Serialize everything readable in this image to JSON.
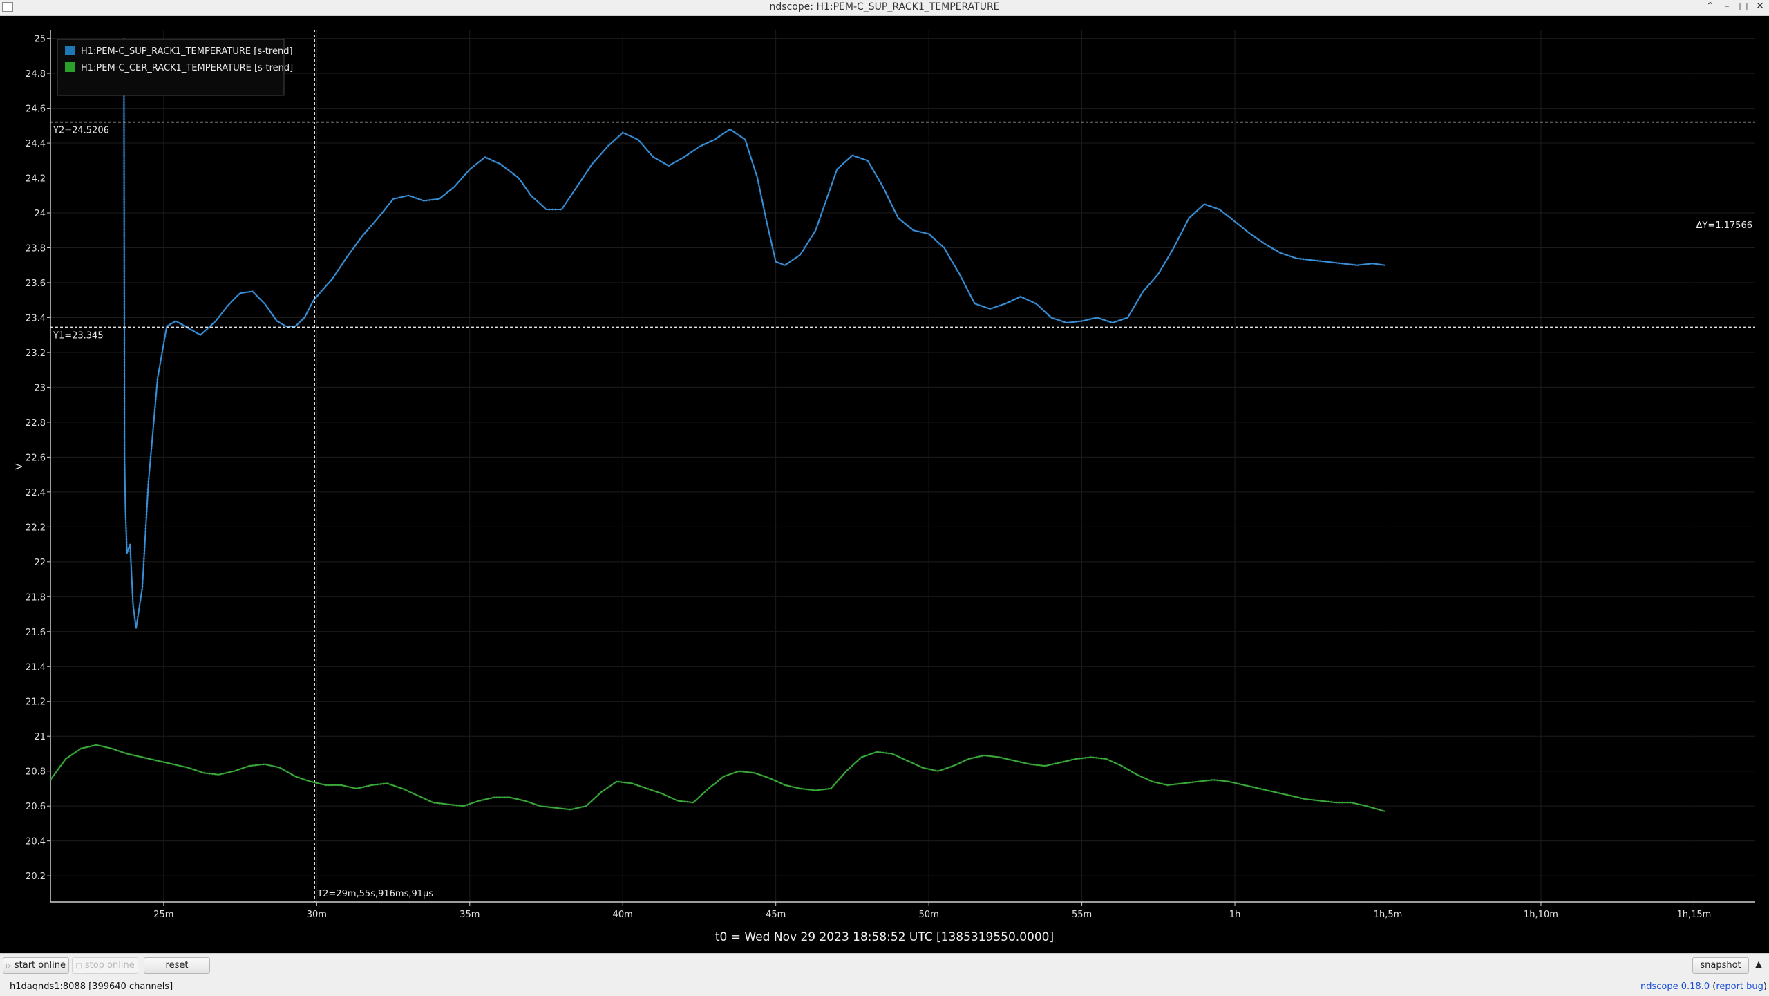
{
  "window": {
    "title": "ndscope: H1:PEM-C_SUP_RACK1_TEMPERATURE",
    "controls": [
      "chevron-up-icon",
      "minimize-icon",
      "maximize-icon",
      "close-icon"
    ]
  },
  "plot": {
    "legend": [
      {
        "label": "H1:PEM-C_SUP_RACK1_TEMPERATURE [s-trend]",
        "color": "#1f77b4"
      },
      {
        "label": "H1:PEM-C_CER_RACK1_TEMPERATURE [s-trend]",
        "color": "#2ca02c"
      }
    ],
    "y_axis_label": "V",
    "t0_label": "t0 = Wed Nov 29 2023 18:58:52 UTC [1385319550.0000]",
    "cursors": {
      "y1_label": "Y1=23.345",
      "y2_label": "Y2=24.5206",
      "dy_label": "ΔY=1.17566",
      "t2_label": "T2=29m,55s,916ms,91μs"
    },
    "colors": {
      "background": "#000000",
      "grid": "#2a2a2a",
      "axis": "#cccccc",
      "cursor": "#dddddd"
    }
  },
  "chart_data": {
    "type": "line",
    "xlabel": "",
    "ylabel": "V",
    "xlim": [
      21.3,
      77.0
    ],
    "ylim": [
      20.05,
      25.05
    ],
    "x_unit": "minutes since t0",
    "x_ticks": [
      {
        "value": 25,
        "label": "25m"
      },
      {
        "value": 30,
        "label": "30m"
      },
      {
        "value": 35,
        "label": "35m"
      },
      {
        "value": 40,
        "label": "40m"
      },
      {
        "value": 45,
        "label": "45m"
      },
      {
        "value": 50,
        "label": "50m"
      },
      {
        "value": 55,
        "label": "55m"
      },
      {
        "value": 60,
        "label": "1h"
      },
      {
        "value": 65,
        "label": "1h,5m"
      },
      {
        "value": 70,
        "label": "1h,10m"
      },
      {
        "value": 75,
        "label": "1h,15m"
      }
    ],
    "y_ticks": [
      "20.2",
      "20.4",
      "20.6",
      "20.8",
      "21",
      "21.2",
      "21.4",
      "21.6",
      "21.8",
      "22",
      "22.2",
      "22.4",
      "22.6",
      "22.8",
      "23",
      "23.2",
      "23.4",
      "23.6",
      "23.8",
      "24",
      "24.2",
      "24.4",
      "24.6",
      "24.8",
      "25"
    ],
    "cursors": {
      "y1": 23.345,
      "y2": 24.5206,
      "t2": 29.93
    },
    "series": [
      {
        "name": "H1:PEM-C_SUP_RACK1_TEMPERATURE [s-trend]",
        "color": "#3a8fd6",
        "x": [
          23.7,
          23.72,
          23.75,
          23.8,
          23.9,
          24.0,
          24.1,
          24.3,
          24.5,
          24.8,
          25.1,
          25.4,
          25.7,
          26.2,
          26.7,
          27.1,
          27.5,
          27.9,
          28.3,
          28.7,
          29.0,
          29.3,
          29.6,
          29.9,
          30.5,
          31.0,
          31.5,
          32.0,
          32.5,
          33.0,
          33.5,
          34.0,
          34.5,
          35.0,
          35.5,
          36.0,
          36.6,
          37.0,
          37.5,
          38.0,
          38.5,
          39.0,
          39.5,
          40.0,
          40.5,
          41.0,
          41.5,
          42.0,
          42.5,
          43.0,
          43.5,
          44.0,
          44.4,
          44.7,
          45.0,
          45.3,
          45.8,
          46.3,
          46.7,
          47.0,
          47.5,
          48.0,
          48.5,
          49.0,
          49.5,
          50.0,
          50.5,
          51.0,
          51.5,
          52.0,
          52.5,
          53.0,
          53.5,
          54.0,
          54.5,
          55.0,
          55.5,
          56.0,
          56.5,
          57.0,
          57.5,
          58.0,
          58.5,
          59.0,
          59.5,
          60.0,
          60.5,
          61.0,
          61.5,
          62.0,
          62.5,
          63.0,
          63.5,
          64.0,
          64.5,
          64.9
        ],
        "y": [
          25.0,
          22.6,
          22.3,
          22.05,
          22.1,
          21.75,
          21.62,
          21.85,
          22.45,
          23.05,
          23.35,
          23.38,
          23.35,
          23.3,
          23.38,
          23.47,
          23.54,
          23.55,
          23.48,
          23.38,
          23.35,
          23.35,
          23.4,
          23.5,
          23.62,
          23.75,
          23.87,
          23.97,
          24.08,
          24.1,
          24.07,
          24.08,
          24.15,
          24.25,
          24.32,
          24.28,
          24.2,
          24.1,
          24.02,
          24.02,
          24.15,
          24.28,
          24.38,
          24.46,
          24.42,
          24.32,
          24.27,
          24.32,
          24.38,
          24.42,
          24.48,
          24.42,
          24.2,
          23.95,
          23.72,
          23.7,
          23.76,
          23.9,
          24.1,
          24.25,
          24.33,
          24.3,
          24.15,
          23.97,
          23.9,
          23.88,
          23.8,
          23.65,
          23.48,
          23.45,
          23.48,
          23.52,
          23.48,
          23.4,
          23.37,
          23.38,
          23.4,
          23.37,
          23.4,
          23.55,
          23.65,
          23.8,
          23.97,
          24.05,
          24.02,
          23.95,
          23.88,
          23.82,
          23.77,
          23.74,
          23.73,
          23.72,
          23.71,
          23.7,
          23.71,
          23.7
        ]
      },
      {
        "name": "H1:PEM-C_CER_RACK1_TEMPERATURE [s-trend]",
        "color": "#3aa83a",
        "x": [
          21.3,
          21.8,
          22.3,
          22.8,
          23.3,
          23.8,
          24.3,
          24.8,
          25.3,
          25.8,
          26.3,
          26.8,
          27.3,
          27.8,
          28.3,
          28.8,
          29.3,
          29.8,
          30.3,
          30.8,
          31.3,
          31.8,
          32.3,
          32.8,
          33.3,
          33.8,
          34.3,
          34.8,
          35.3,
          35.8,
          36.3,
          36.8,
          37.3,
          37.8,
          38.3,
          38.8,
          39.3,
          39.8,
          40.3,
          40.8,
          41.3,
          41.8,
          42.3,
          42.8,
          43.3,
          43.8,
          44.3,
          44.8,
          45.3,
          45.8,
          46.3,
          46.8,
          47.3,
          47.8,
          48.3,
          48.8,
          49.3,
          49.8,
          50.3,
          50.8,
          51.3,
          51.8,
          52.3,
          52.8,
          53.3,
          53.8,
          54.3,
          54.8,
          55.3,
          55.8,
          56.3,
          56.8,
          57.3,
          57.8,
          58.3,
          58.8,
          59.3,
          59.8,
          60.3,
          60.8,
          61.3,
          61.8,
          62.3,
          62.8,
          63.3,
          63.8,
          64.3,
          64.9
        ],
        "y": [
          20.75,
          20.87,
          20.93,
          20.95,
          20.93,
          20.9,
          20.88,
          20.86,
          20.84,
          20.82,
          20.79,
          20.78,
          20.8,
          20.83,
          20.84,
          20.82,
          20.77,
          20.74,
          20.72,
          20.72,
          20.7,
          20.72,
          20.73,
          20.7,
          20.66,
          20.62,
          20.61,
          20.6,
          20.63,
          20.65,
          20.65,
          20.63,
          20.6,
          20.59,
          20.58,
          20.6,
          20.68,
          20.74,
          20.73,
          20.7,
          20.67,
          20.63,
          20.62,
          20.7,
          20.77,
          20.8,
          20.79,
          20.76,
          20.72,
          20.7,
          20.69,
          20.7,
          20.8,
          20.88,
          20.91,
          20.9,
          20.86,
          20.82,
          20.8,
          20.83,
          20.87,
          20.89,
          20.88,
          20.86,
          20.84,
          20.83,
          20.85,
          20.87,
          20.88,
          20.87,
          20.83,
          20.78,
          20.74,
          20.72,
          20.73,
          20.74,
          20.75,
          20.74,
          20.72,
          20.7,
          20.68,
          20.66,
          20.64,
          20.63,
          20.62,
          20.62,
          20.6,
          20.57
        ]
      }
    ]
  },
  "toolbar": {
    "start_online": "start online",
    "stop_online": "stop online",
    "reset": "reset",
    "snapshot": "snapshot"
  },
  "status": {
    "server": "h1daqnds1:8088  [399640 channels]",
    "version_link": "ndscope 0.18.0",
    "report_link": "report bug"
  }
}
